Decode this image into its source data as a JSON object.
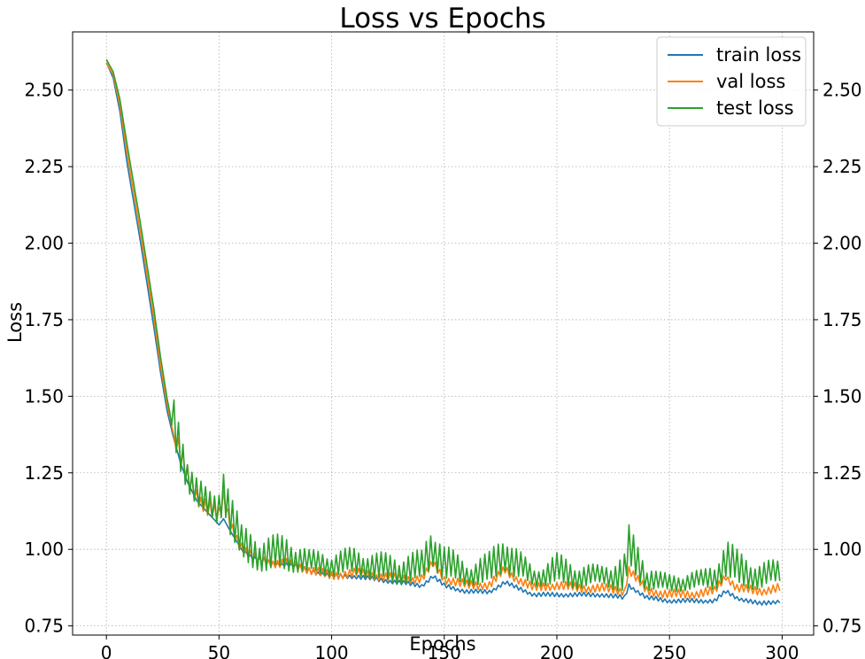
{
  "chart_data": {
    "type": "line",
    "title": "Loss vs Epochs",
    "xlabel": "Epochs",
    "ylabel": "Loss",
    "xlim": [
      -15,
      314
    ],
    "ylim": [
      0.72,
      2.69
    ],
    "xticks": [
      0,
      50,
      100,
      150,
      200,
      250,
      300
    ],
    "yticks": [
      0.75,
      1.0,
      1.25,
      1.5,
      1.75,
      2.0,
      2.25,
      2.5
    ],
    "ytick_labels": [
      "0.75",
      "1.00",
      "1.25",
      "1.50",
      "1.75",
      "2.00",
      "2.25",
      "2.50"
    ],
    "right_axis_ticks": true,
    "grid": true,
    "legend_position": "top-right",
    "x_range": [
      0,
      299
    ],
    "series": [
      {
        "name": "train loss",
        "color": "#1f77b4",
        "points": [
          [
            0,
            2.59
          ],
          [
            3,
            2.54
          ],
          [
            6,
            2.43
          ],
          [
            9,
            2.27
          ],
          [
            12,
            2.14
          ],
          [
            15,
            2.01
          ],
          [
            18,
            1.87
          ],
          [
            21,
            1.73
          ],
          [
            24,
            1.58
          ],
          [
            27,
            1.45
          ],
          [
            30,
            1.36
          ],
          [
            33,
            1.28
          ],
          [
            36,
            1.22
          ],
          [
            40,
            1.16
          ],
          [
            45,
            1.12
          ],
          [
            50,
            1.08
          ],
          [
            52,
            1.1
          ],
          [
            55,
            1.06
          ],
          [
            60,
            1.0
          ],
          [
            65,
            0.97
          ],
          [
            70,
            0.96
          ],
          [
            75,
            0.95
          ],
          [
            80,
            0.95
          ],
          [
            90,
            0.93
          ],
          [
            100,
            0.91
          ],
          [
            110,
            0.91
          ],
          [
            120,
            0.9
          ],
          [
            130,
            0.89
          ],
          [
            140,
            0.88
          ],
          [
            145,
            0.91
          ],
          [
            150,
            0.88
          ],
          [
            160,
            0.86
          ],
          [
            170,
            0.86
          ],
          [
            177,
            0.89
          ],
          [
            180,
            0.88
          ],
          [
            190,
            0.85
          ],
          [
            200,
            0.85
          ],
          [
            210,
            0.85
          ],
          [
            220,
            0.85
          ],
          [
            230,
            0.84
          ],
          [
            232,
            0.88
          ],
          [
            240,
            0.84
          ],
          [
            250,
            0.83
          ],
          [
            260,
            0.83
          ],
          [
            270,
            0.83
          ],
          [
            275,
            0.86
          ],
          [
            280,
            0.84
          ],
          [
            290,
            0.82
          ],
          [
            299,
            0.83
          ]
        ],
        "osc": [
          [
            0,
            0
          ],
          [
            60,
            0
          ],
          [
            61,
            0.01
          ],
          [
            299,
            0.01
          ]
        ]
      },
      {
        "name": "val loss",
        "color": "#ff7f0e",
        "points": [
          [
            0,
            2.59
          ],
          [
            3,
            2.55
          ],
          [
            6,
            2.45
          ],
          [
            9,
            2.3
          ],
          [
            12,
            2.17
          ],
          [
            15,
            2.04
          ],
          [
            18,
            1.9
          ],
          [
            21,
            1.76
          ],
          [
            24,
            1.6
          ],
          [
            27,
            1.47
          ],
          [
            30,
            1.37
          ],
          [
            33,
            1.29
          ],
          [
            36,
            1.23
          ],
          [
            40,
            1.17
          ],
          [
            45,
            1.13
          ],
          [
            50,
            1.1
          ],
          [
            52,
            1.16
          ],
          [
            55,
            1.08
          ],
          [
            60,
            1.0
          ],
          [
            65,
            0.97
          ],
          [
            70,
            0.96
          ],
          [
            75,
            0.95
          ],
          [
            80,
            0.95
          ],
          [
            90,
            0.93
          ],
          [
            100,
            0.91
          ],
          [
            110,
            0.92
          ],
          [
            120,
            0.91
          ],
          [
            130,
            0.9
          ],
          [
            140,
            0.9
          ],
          [
            145,
            0.95
          ],
          [
            150,
            0.9
          ],
          [
            160,
            0.88
          ],
          [
            170,
            0.88
          ],
          [
            177,
            0.93
          ],
          [
            180,
            0.91
          ],
          [
            190,
            0.87
          ],
          [
            200,
            0.88
          ],
          [
            210,
            0.87
          ],
          [
            220,
            0.87
          ],
          [
            230,
            0.86
          ],
          [
            232,
            0.93
          ],
          [
            240,
            0.86
          ],
          [
            250,
            0.85
          ],
          [
            260,
            0.85
          ],
          [
            270,
            0.86
          ],
          [
            275,
            0.91
          ],
          [
            280,
            0.87
          ],
          [
            290,
            0.86
          ],
          [
            299,
            0.87
          ]
        ],
        "osc": [
          [
            0,
            0
          ],
          [
            30,
            0
          ],
          [
            31,
            0.05
          ],
          [
            60,
            0.03
          ],
          [
            61,
            0.02
          ],
          [
            299,
            0.02
          ]
        ]
      },
      {
        "name": "test loss",
        "color": "#2ca02c",
        "points": [
          [
            0,
            2.6
          ],
          [
            3,
            2.56
          ],
          [
            6,
            2.47
          ],
          [
            9,
            2.33
          ],
          [
            12,
            2.2
          ],
          [
            15,
            2.07
          ],
          [
            18,
            1.93
          ],
          [
            21,
            1.79
          ],
          [
            24,
            1.63
          ],
          [
            27,
            1.49
          ],
          [
            30,
            1.38
          ],
          [
            33,
            1.3
          ],
          [
            36,
            1.24
          ],
          [
            40,
            1.18
          ],
          [
            45,
            1.13
          ],
          [
            50,
            1.12
          ],
          [
            52,
            1.2
          ],
          [
            55,
            1.1
          ],
          [
            60,
            1.0
          ],
          [
            65,
            0.98
          ],
          [
            70,
            0.97
          ],
          [
            75,
            0.97
          ],
          [
            80,
            0.97
          ],
          [
            90,
            0.95
          ],
          [
            100,
            0.94
          ],
          [
            110,
            0.95
          ],
          [
            120,
            0.93
          ],
          [
            130,
            0.92
          ],
          [
            140,
            0.93
          ],
          [
            145,
            1.0
          ],
          [
            150,
            0.94
          ],
          [
            160,
            0.91
          ],
          [
            170,
            0.92
          ],
          [
            177,
            0.98
          ],
          [
            180,
            0.95
          ],
          [
            190,
            0.9
          ],
          [
            200,
            0.92
          ],
          [
            210,
            0.9
          ],
          [
            220,
            0.91
          ],
          [
            230,
            0.9
          ],
          [
            232,
            0.98
          ],
          [
            240,
            0.9
          ],
          [
            250,
            0.88
          ],
          [
            260,
            0.89
          ],
          [
            270,
            0.9
          ],
          [
            275,
            0.95
          ],
          [
            280,
            0.92
          ],
          [
            290,
            0.9
          ],
          [
            299,
            0.92
          ]
        ],
        "osc": [
          [
            0,
            0
          ],
          [
            28,
            0
          ],
          [
            30,
            0.11
          ],
          [
            40,
            0.07
          ],
          [
            48,
            0.06
          ],
          [
            52,
            0.12
          ],
          [
            60,
            0.08
          ],
          [
            80,
            0.08
          ],
          [
            90,
            0.05
          ],
          [
            110,
            0.06
          ],
          [
            140,
            0.07
          ],
          [
            145,
            0.1
          ],
          [
            160,
            0.05
          ],
          [
            177,
            0.09
          ],
          [
            190,
            0.04
          ],
          [
            200,
            0.07
          ],
          [
            220,
            0.04
          ],
          [
            232,
            0.1
          ],
          [
            245,
            0.04
          ],
          [
            265,
            0.04
          ],
          [
            276,
            0.09
          ],
          [
            290,
            0.06
          ],
          [
            299,
            0.05
          ]
        ]
      }
    ]
  }
}
